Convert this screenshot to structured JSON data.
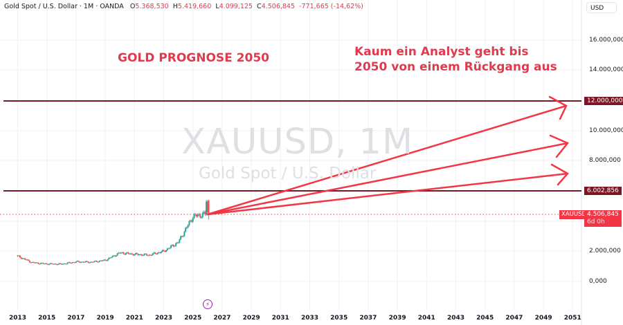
{
  "legend": {
    "symbol": "Gold Spot / U.S. Dollar · 1M · OANDA",
    "open_label": "O",
    "open": "5.368,530",
    "high_label": "H",
    "high": "5.419,660",
    "low_label": "L",
    "low": "4.099,125",
    "close_label": "C",
    "close": "4.506,845",
    "change": "-771,665 (-14,62%)"
  },
  "currency": "USD",
  "watermark": {
    "ticker": "XAUUSD, 1M",
    "name": "Gold Spot / U.S. Dollar"
  },
  "annotations": {
    "title": "GOLD PROGNOSE 2050",
    "note_line1": "Kaum ein Analyst geht bis",
    "note_line2": "2050 von einem Rückgang aus"
  },
  "price_axis": {
    "labels": [
      "16.000,000",
      "14.000,000",
      "10.000,000",
      "8.000,000",
      "2.000,000",
      "0,000"
    ],
    "level_high": "12.000,000",
    "level_low": "6.002,856",
    "current_symbol": "XAUUSD",
    "current_price": "4.506,845",
    "countdown": "6d 0h"
  },
  "time_axis": {
    "labels": [
      "2013",
      "2015",
      "2017",
      "2019",
      "2021",
      "2023",
      "2025",
      "2027",
      "2029",
      "2031",
      "2033",
      "2035",
      "2037",
      "2039",
      "2041",
      "2043",
      "2045",
      "2047",
      "2049",
      "2051"
    ]
  },
  "colors": {
    "up": "#26a69a",
    "down": "#ef5350",
    "annotation": "#e03a4e",
    "level_line": "#7b1724",
    "price_tag": "#f23645"
  },
  "chart_data": {
    "type": "line",
    "title": "GOLD PROGNOSE 2050",
    "subtitle": "XAUUSD, 1M — Gold Spot / U.S. Dollar (OANDA)",
    "xlabel": "",
    "ylabel": "USD",
    "ylim": [
      0,
      16000
    ],
    "x": [
      2013,
      2014,
      2015,
      2016,
      2017,
      2018,
      2019,
      2020,
      2021,
      2022,
      2023,
      2024,
      2025,
      2026
    ],
    "series": [
      {
        "name": "XAUUSD monthly close (approx.)",
        "values": [
          1680,
          1250,
          1160,
          1150,
          1300,
          1280,
          1400,
          1900,
          1800,
          1750,
          2000,
          2600,
          4300,
          4507
        ]
      }
    ],
    "horizontal_levels": [
      12000,
      6002.856
    ],
    "current_price": 4506.845,
    "projection_arrows": [
      {
        "from": [
          2026,
          4507
        ],
        "to": [
          2050,
          11600
        ]
      },
      {
        "from": [
          2026,
          4507
        ],
        "to": [
          2050,
          9100
        ]
      },
      {
        "from": [
          2026,
          4507
        ],
        "to": [
          2050,
          7300
        ]
      }
    ],
    "ohlc_last": {
      "open": 5368.53,
      "high": 5419.66,
      "low": 4099.125,
      "close": 4506.845,
      "change": -771.665,
      "change_pct": -14.62
    },
    "legend_position": "top-left",
    "grid": true
  }
}
